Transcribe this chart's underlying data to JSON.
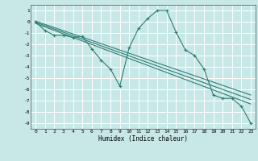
{
  "title": "",
  "xlabel": "Humidex (Indice chaleur)",
  "ylabel": "",
  "background_color": "#c8e8e8",
  "grid_color": "#ffffff",
  "line_color": "#2e7d72",
  "xlim": [
    -0.5,
    23.5
  ],
  "ylim": [
    -9.5,
    1.5
  ],
  "yticks": [
    1,
    0,
    -1,
    -2,
    -3,
    -4,
    -5,
    -6,
    -7,
    -8,
    -9
  ],
  "xticks": [
    0,
    1,
    2,
    3,
    4,
    5,
    6,
    7,
    8,
    9,
    10,
    11,
    12,
    13,
    14,
    15,
    16,
    17,
    18,
    19,
    20,
    21,
    22,
    23
  ],
  "main_curve_x": [
    0,
    1,
    2,
    3,
    4,
    5,
    6,
    7,
    8,
    9,
    10,
    11,
    12,
    13,
    14,
    15,
    16,
    17,
    18,
    19,
    20,
    21,
    22,
    23
  ],
  "main_curve_y": [
    0,
    -0.8,
    -1.2,
    -1.2,
    -1.4,
    -1.3,
    -2.4,
    -3.4,
    -4.2,
    -5.7,
    -2.3,
    -0.6,
    0.3,
    1.0,
    1.0,
    -0.9,
    -2.5,
    -3.0,
    -4.2,
    -6.5,
    -6.8,
    -6.8,
    -7.5,
    -9.0
  ],
  "trend1_x": [
    0,
    23
  ],
  "trend1_y": [
    -0.05,
    -6.9
  ],
  "trend2_x": [
    0,
    23
  ],
  "trend2_y": [
    -0.15,
    -7.3
  ],
  "trend3_x": [
    0,
    23
  ],
  "trend3_y": [
    0.05,
    -6.5
  ],
  "marker": "+"
}
